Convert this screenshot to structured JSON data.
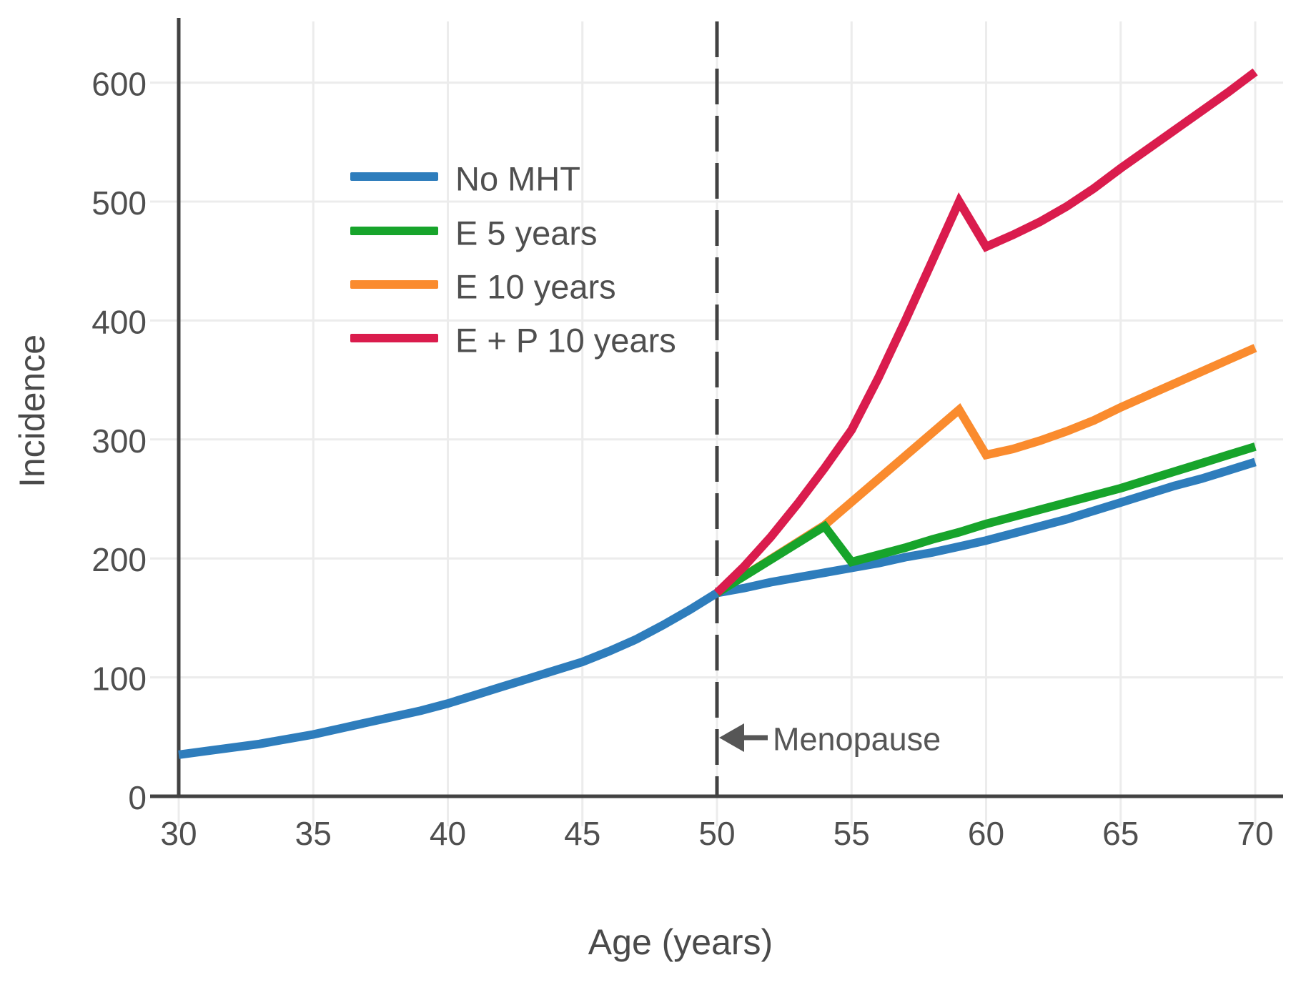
{
  "chart_data": {
    "type": "line",
    "title": "",
    "xlabel": "Age (years)",
    "ylabel": "Incidence",
    "x_axis": {
      "ticks": [
        30,
        35,
        40,
        45,
        50,
        55,
        60,
        65,
        70
      ],
      "range": [
        30,
        70
      ]
    },
    "y_axis": {
      "ticks": [
        0,
        100,
        200,
        300,
        400,
        500,
        600
      ],
      "range": [
        0,
        652
      ]
    },
    "grid": "on",
    "legend_position": "upper-left-inside",
    "series": [
      {
        "name": "No MHT",
        "color": "#2e7dbc",
        "points": [
          [
            30,
            35
          ],
          [
            31,
            38
          ],
          [
            32,
            41
          ],
          [
            33,
            44
          ],
          [
            34,
            48
          ],
          [
            35,
            52
          ],
          [
            36,
            57
          ],
          [
            37,
            62
          ],
          [
            38,
            67
          ],
          [
            39,
            72
          ],
          [
            40,
            78
          ],
          [
            41,
            85
          ],
          [
            42,
            92
          ],
          [
            43,
            99
          ],
          [
            44,
            106
          ],
          [
            45,
            113
          ],
          [
            46,
            122
          ],
          [
            47,
            132
          ],
          [
            48,
            144
          ],
          [
            49,
            157
          ],
          [
            50,
            171
          ],
          [
            51,
            175
          ],
          [
            52,
            180
          ],
          [
            53,
            184
          ],
          [
            54,
            188
          ],
          [
            55,
            192
          ],
          [
            56,
            196
          ],
          [
            57,
            201
          ],
          [
            58,
            205
          ],
          [
            59,
            210
          ],
          [
            60,
            215
          ],
          [
            61,
            221
          ],
          [
            62,
            227
          ],
          [
            63,
            233
          ],
          [
            64,
            240
          ],
          [
            65,
            247
          ],
          [
            66,
            254
          ],
          [
            67,
            261
          ],
          [
            68,
            267
          ],
          [
            69,
            274
          ],
          [
            70,
            281
          ]
        ]
      },
      {
        "name": "E 5 years",
        "color": "#17a42b",
        "points": [
          [
            50,
            171
          ],
          [
            54,
            227
          ],
          [
            55,
            197
          ],
          [
            56,
            203
          ],
          [
            57,
            209
          ],
          [
            58,
            216
          ],
          [
            59,
            222
          ],
          [
            60,
            229
          ],
          [
            61,
            235
          ],
          [
            62,
            241
          ],
          [
            63,
            247
          ],
          [
            64,
            253
          ],
          [
            65,
            259
          ],
          [
            66,
            266
          ],
          [
            67,
            273
          ],
          [
            68,
            280
          ],
          [
            69,
            287
          ],
          [
            70,
            294
          ]
        ]
      },
      {
        "name": "E 10 years",
        "color": "#fa8b2e",
        "points": [
          [
            50,
            171
          ],
          [
            54,
            228
          ],
          [
            59,
            325
          ],
          [
            60,
            287
          ],
          [
            61,
            292
          ],
          [
            62,
            299
          ],
          [
            63,
            307
          ],
          [
            64,
            316
          ],
          [
            65,
            327
          ],
          [
            66,
            337
          ],
          [
            67,
            347
          ],
          [
            68,
            357
          ],
          [
            69,
            367
          ],
          [
            70,
            377
          ]
        ]
      },
      {
        "name": "E + P 10 years",
        "color": "#da1c4d",
        "points": [
          [
            50,
            171
          ],
          [
            51,
            193
          ],
          [
            52,
            218
          ],
          [
            53,
            246
          ],
          [
            54,
            276
          ],
          [
            55,
            308
          ],
          [
            56,
            352
          ],
          [
            57,
            400
          ],
          [
            58,
            450
          ],
          [
            59,
            500
          ],
          [
            60,
            462
          ],
          [
            61,
            472
          ],
          [
            62,
            483
          ],
          [
            63,
            496
          ],
          [
            64,
            511
          ],
          [
            65,
            528
          ],
          [
            66,
            544
          ],
          [
            67,
            560
          ],
          [
            68,
            576
          ],
          [
            69,
            592
          ],
          [
            70,
            609
          ]
        ]
      }
    ],
    "annotation": {
      "label": "Menopause",
      "icon": "left-arrow",
      "at_age": 50
    },
    "reference_line": {
      "age": 50,
      "style": "dashed-vertical"
    },
    "colors": {
      "grid": "#ececec",
      "axis": "#424242",
      "dashed_line": "#424242",
      "tick_text": "#4f4f4f",
      "annotation": "#565656",
      "background": "#ffffff"
    }
  }
}
